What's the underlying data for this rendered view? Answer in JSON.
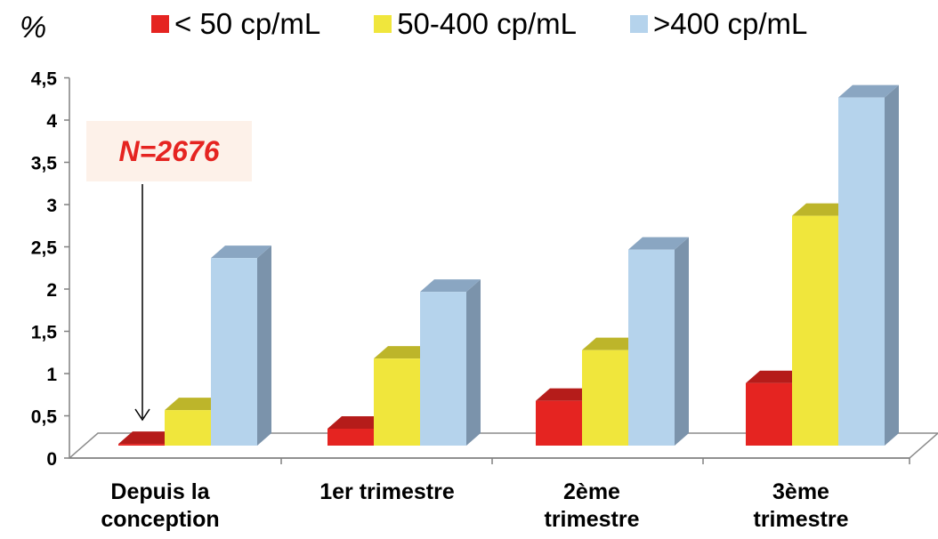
{
  "chart_data": {
    "type": "bar",
    "y_axis_title": "%",
    "categories": [
      "Depuis la\nconception",
      "1er trimestre",
      "2ème\ntrimestre",
      "3ème\ntrimestre"
    ],
    "series": [
      {
        "name": "< 50 cp/mL",
        "values": [
          0.02,
          0.2,
          0.53,
          0.74
        ],
        "color": "#e52421",
        "top_color": "#b51c1a",
        "side_color": "#9e1816"
      },
      {
        "name": "50-400 cp/mL",
        "values": [
          0.42,
          1.03,
          1.13,
          2.72
        ],
        "color": "#f0e63c",
        "top_color": "#bdb52a",
        "side_color": "#a8a120"
      },
      {
        "name": ">400 cp/mL",
        "values": [
          2.22,
          1.82,
          2.32,
          4.12
        ],
        "color": "#b5d3ec",
        "top_color": "#8aa6c2",
        "side_color": "#7b93ab"
      }
    ],
    "ylim": [
      0,
      4.5
    ],
    "yticks": [
      "0",
      "0,5",
      "1",
      "1,5",
      "2",
      "2,5",
      "3",
      "3,5",
      "4",
      "4,5"
    ],
    "grid": false,
    "legend_position": "top",
    "annotation": {
      "text": "N=2676",
      "points_to": "Depuis la conception, < 50 cp/mL"
    }
  }
}
